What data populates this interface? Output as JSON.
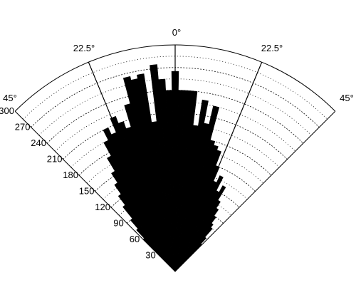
{
  "chart_data": {
    "type": "polar-bar",
    "title": "",
    "angle_range_deg": [
      -45,
      45
    ],
    "angle_ticks": [
      {
        "deg": -45,
        "label": "45°"
      },
      {
        "deg": -22.5,
        "label": "22.5°"
      },
      {
        "deg": 0,
        "label": "0°"
      },
      {
        "deg": 22.5,
        "label": "22.5°"
      },
      {
        "deg": 45,
        "label": "45°"
      }
    ],
    "radial_range": [
      0,
      300
    ],
    "radial_grid_step": 15,
    "radial_ticks": [
      30,
      60,
      90,
      120,
      150,
      180,
      210,
      240,
      270,
      300
    ],
    "radial_tick_labels": [
      "30",
      "60",
      "90",
      "120",
      "150",
      "180",
      "210",
      "240",
      "270",
      "300"
    ],
    "bins": [
      {
        "start": -45,
        "end": -43,
        "value": 60
      },
      {
        "start": -43,
        "end": -41,
        "value": 75
      },
      {
        "start": -41,
        "end": -39,
        "value": 90
      },
      {
        "start": -39,
        "end": -37,
        "value": 110
      },
      {
        "start": -37,
        "end": -35,
        "value": 125
      },
      {
        "start": -35,
        "end": -33,
        "value": 140
      },
      {
        "start": -33,
        "end": -31,
        "value": 155
      },
      {
        "start": -31,
        "end": -29,
        "value": 175
      },
      {
        "start": -29,
        "end": -27,
        "value": 195
      },
      {
        "start": -27,
        "end": -25,
        "value": 210
      },
      {
        "start": -25,
        "end": -23,
        "value": 200
      },
      {
        "start": -23,
        "end": -21,
        "value": 220
      },
      {
        "start": -21,
        "end": -19,
        "value": 210
      },
      {
        "start": -19,
        "end": -17,
        "value": 200
      },
      {
        "start": -17,
        "end": -15,
        "value": 230
      },
      {
        "start": -15,
        "end": -13,
        "value": 265
      },
      {
        "start": -13,
        "end": -11,
        "value": 260
      },
      {
        "start": -11,
        "end": -9,
        "value": 265
      },
      {
        "start": -9,
        "end": -7,
        "value": 200
      },
      {
        "start": -7,
        "end": -5,
        "value": 275
      },
      {
        "start": -5,
        "end": -3,
        "value": 255
      },
      {
        "start": -3,
        "end": -1,
        "value": 240
      },
      {
        "start": -1,
        "end": 1,
        "value": 265
      },
      {
        "start": 1,
        "end": 3,
        "value": 240
      },
      {
        "start": 3,
        "end": 5,
        "value": 240
      },
      {
        "start": 5,
        "end": 7,
        "value": 240
      },
      {
        "start": 7,
        "end": 9,
        "value": 195
      },
      {
        "start": 9,
        "end": 11,
        "value": 230
      },
      {
        "start": 11,
        "end": 13,
        "value": 200
      },
      {
        "start": 13,
        "end": 15,
        "value": 225
      },
      {
        "start": 15,
        "end": 17,
        "value": 180
      },
      {
        "start": 17,
        "end": 19,
        "value": 175
      },
      {
        "start": 19,
        "end": 21,
        "value": 170
      },
      {
        "start": 21,
        "end": 23,
        "value": 150
      },
      {
        "start": 23,
        "end": 25,
        "value": 130
      },
      {
        "start": 25,
        "end": 27,
        "value": 140
      },
      {
        "start": 27,
        "end": 29,
        "value": 120
      },
      {
        "start": 29,
        "end": 31,
        "value": 130
      },
      {
        "start": 31,
        "end": 33,
        "value": 110
      },
      {
        "start": 33,
        "end": 35,
        "value": 100
      },
      {
        "start": 35,
        "end": 37,
        "value": 90
      },
      {
        "start": 37,
        "end": 39,
        "value": 80
      },
      {
        "start": 39,
        "end": 41,
        "value": 75
      },
      {
        "start": 41,
        "end": 43,
        "value": 60
      },
      {
        "start": 43,
        "end": 45,
        "value": 50
      }
    ],
    "grid": true,
    "colors": {
      "bars": "#000000",
      "grid": "#000000",
      "background": "#ffffff"
    }
  }
}
